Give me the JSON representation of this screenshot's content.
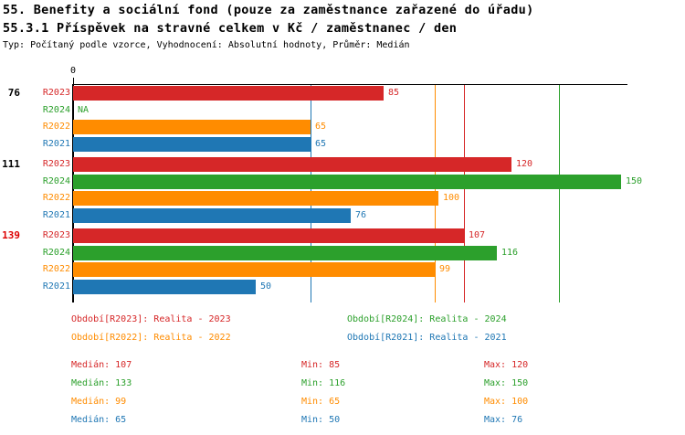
{
  "header": {
    "title1": "55. Benefity a sociální fond (pouze za zaměstnance zařazené do úřadu)",
    "title2": "55.3.1 Příspěvek na stravné celkem v Kč / zaměstnanec / den",
    "subtitle": "Typ: Počítaný podle vzorce, Vyhodnocení: Absolutní hodnoty, Průměr: Medián"
  },
  "colors": {
    "R2023": "#d62728",
    "R2024": "#2ca02c",
    "R2022": "#ff8c00",
    "R2021": "#1f77b4",
    "axis": "#000000",
    "highlight_group_label": "#dd0000",
    "normal_group_label": "#000000"
  },
  "chart_data": {
    "type": "bar",
    "orientation": "horizontal",
    "title": "",
    "xlabel": "",
    "ylabel": "",
    "xlim": [
      0,
      151
    ],
    "grid": false,
    "axis_zero_label": "0",
    "na_text": "NA",
    "series_order": [
      "R2023",
      "R2024",
      "R2022",
      "R2021"
    ],
    "median_lines": {
      "R2023": 107,
      "R2024": 133,
      "R2022": 99,
      "R2021": 65
    },
    "groups": [
      {
        "label": "76",
        "label_color": "#000000",
        "values": {
          "R2023": 85,
          "R2024": null,
          "R2022": 65,
          "R2021": 65
        }
      },
      {
        "label": "111",
        "label_color": "#000000",
        "values": {
          "R2023": 120,
          "R2024": 150,
          "R2022": 100,
          "R2021": 76
        }
      },
      {
        "label": "139",
        "label_color": "#dd0000",
        "values": {
          "R2023": 107,
          "R2024": 116,
          "R2022": 99,
          "R2021": 50
        }
      }
    ]
  },
  "legend": [
    {
      "series": "R2023",
      "label": "Období[R2023]: Realita - 2023"
    },
    {
      "series": "R2024",
      "label": "Období[R2024]: Realita - 2024"
    },
    {
      "series": "R2022",
      "label": "Období[R2022]: Realita - 2022"
    },
    {
      "series": "R2021",
      "label": "Období[R2021]: Realita - 2021"
    }
  ],
  "stats": [
    {
      "series": "R2023",
      "median": "Medián: 107",
      "min": "Min: 85",
      "max": "Max: 120"
    },
    {
      "series": "R2024",
      "median": "Medián: 133",
      "min": "Min: 116",
      "max": "Max: 150"
    },
    {
      "series": "R2022",
      "median": "Medián: 99",
      "min": "Min: 65",
      "max": "Max: 100"
    },
    {
      "series": "R2021",
      "median": "Medián: 65",
      "min": "Min: 50",
      "max": "Max: 76"
    }
  ]
}
